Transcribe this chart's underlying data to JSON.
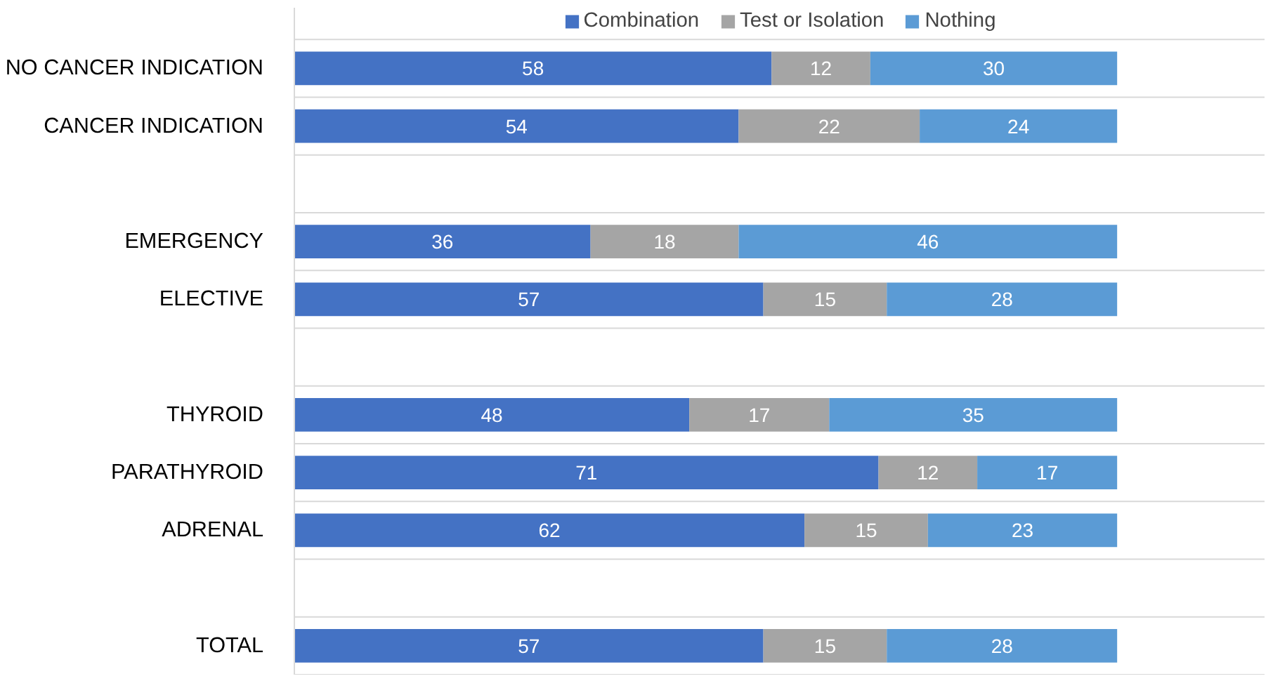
{
  "chart_data": {
    "type": "bar",
    "orientation": "horizontal",
    "stacked": true,
    "data_labels": true,
    "grid": "y",
    "legend": "top",
    "tick_labels": "y",
    "categories": [
      "NO CANCER INDICATION",
      "CANCER INDICATION",
      null,
      "EMERGENCY",
      "ELECTIVE",
      null,
      "THYROID",
      "PARATHYROID",
      "ADRENAL",
      null,
      "TOTAL"
    ],
    "xlim": [
      0,
      118
    ],
    "series": [
      {
        "name": "Combination",
        "color": "#4472c4",
        "values": [
          58,
          54,
          null,
          36,
          57,
          null,
          48,
          71,
          62,
          null,
          57
        ]
      },
      {
        "name": "Test or Isolation",
        "color": "#a5a5a5",
        "values": [
          12,
          22,
          null,
          18,
          15,
          null,
          17,
          12,
          15,
          null,
          15
        ]
      },
      {
        "name": "Nothing",
        "color": "#5b9bd5",
        "values": [
          30,
          24,
          null,
          46,
          28,
          null,
          35,
          17,
          23,
          null,
          28
        ]
      }
    ]
  }
}
